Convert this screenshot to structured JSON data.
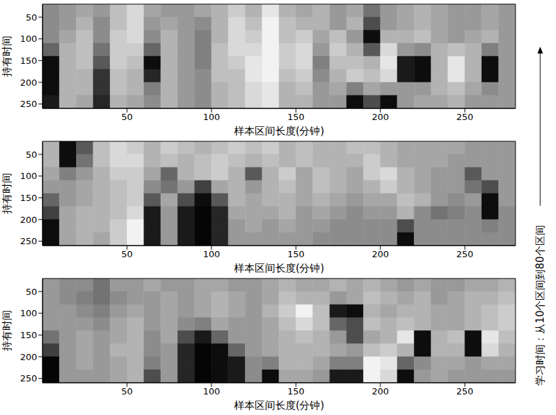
{
  "annotation": "学习时间：从10个区间到80个区间",
  "chart_data": [
    {
      "type": "heatmap",
      "x_label": "样本区间长度(分钟)",
      "y_label": "持有时间",
      "xlim": [
        0,
        280
      ],
      "ylim": [
        20,
        260
      ],
      "xticks": [
        50,
        100,
        150,
        200,
        250
      ],
      "yticks": [
        50,
        100,
        150,
        200,
        250
      ],
      "x_bins": [
        0,
        10,
        20,
        30,
        40,
        50,
        60,
        70,
        80,
        90,
        100,
        110,
        120,
        130,
        140,
        150,
        160,
        170,
        180,
        190,
        200,
        210,
        220,
        230,
        240,
        250,
        260,
        270,
        280
      ],
      "y_bins": [
        20,
        50,
        80,
        110,
        140,
        170,
        200,
        230,
        260
      ],
      "cells": [
        [
          0.55,
          0.6,
          0.65,
          0.6,
          0.75,
          0.85,
          0.65,
          0.6,
          0.6,
          0.65,
          0.7,
          0.8,
          0.7,
          0.9,
          0.7,
          0.65,
          0.7,
          0.6,
          0.65,
          0.45,
          0.6,
          0.65,
          0.7,
          0.65,
          0.6,
          0.6,
          0.65,
          0.6
        ],
        [
          0.55,
          0.6,
          0.7,
          0.55,
          0.75,
          0.85,
          0.6,
          0.65,
          0.6,
          0.55,
          0.7,
          0.85,
          0.75,
          0.95,
          0.75,
          0.7,
          0.7,
          0.6,
          0.7,
          0.3,
          0.6,
          0.65,
          0.7,
          0.65,
          0.6,
          0.6,
          0.65,
          0.6
        ],
        [
          0.55,
          0.65,
          0.75,
          0.55,
          0.8,
          0.85,
          0.55,
          0.7,
          0.6,
          0.5,
          0.7,
          0.85,
          0.8,
          0.95,
          0.75,
          0.8,
          0.65,
          0.75,
          0.6,
          0.05,
          0.7,
          0.7,
          0.75,
          0.65,
          0.6,
          0.65,
          0.7,
          0.6
        ],
        [
          0.4,
          0.7,
          0.75,
          0.45,
          0.8,
          0.8,
          0.4,
          0.7,
          0.6,
          0.5,
          0.75,
          0.85,
          0.85,
          0.95,
          0.8,
          0.85,
          0.6,
          0.8,
          0.7,
          0.35,
          0.85,
          0.6,
          0.55,
          0.7,
          0.75,
          0.7,
          0.5,
          0.6
        ],
        [
          0.05,
          0.7,
          0.75,
          0.35,
          0.8,
          0.75,
          0.05,
          0.7,
          0.6,
          0.5,
          0.75,
          0.8,
          0.9,
          0.95,
          0.8,
          0.85,
          0.5,
          0.75,
          0.75,
          0.7,
          0.9,
          0.1,
          0.05,
          0.7,
          0.9,
          0.7,
          0.05,
          0.6
        ],
        [
          0.05,
          0.7,
          0.7,
          0.2,
          0.75,
          0.7,
          0.15,
          0.7,
          0.6,
          0.55,
          0.75,
          0.75,
          0.9,
          0.95,
          0.75,
          0.8,
          0.55,
          0.7,
          0.8,
          0.75,
          0.85,
          0.1,
          0.05,
          0.7,
          0.9,
          0.7,
          0.05,
          0.6
        ],
        [
          0.05,
          0.7,
          0.7,
          0.2,
          0.75,
          0.7,
          0.5,
          0.7,
          0.6,
          0.55,
          0.7,
          0.75,
          0.85,
          0.9,
          0.7,
          0.75,
          0.6,
          0.65,
          0.5,
          0.65,
          0.6,
          0.6,
          0.6,
          0.7,
          0.75,
          0.65,
          0.55,
          0.6
        ],
        [
          0.1,
          0.7,
          0.65,
          0.15,
          0.7,
          0.65,
          0.55,
          0.7,
          0.6,
          0.55,
          0.7,
          0.75,
          0.85,
          0.9,
          0.7,
          0.7,
          0.6,
          0.6,
          0.05,
          0.3,
          0.05,
          0.6,
          0.65,
          0.65,
          0.7,
          0.6,
          0.6,
          0.6
        ]
      ]
    },
    {
      "type": "heatmap",
      "x_label": "样本区间长度(分钟)",
      "y_label": "持有时间",
      "xlim": [
        0,
        280
      ],
      "ylim": [
        20,
        260
      ],
      "xticks": [
        50,
        100,
        150,
        200,
        250
      ],
      "yticks": [
        50,
        100,
        150,
        200,
        250
      ],
      "x_bins": [
        0,
        10,
        20,
        30,
        40,
        50,
        60,
        70,
        80,
        90,
        100,
        110,
        120,
        130,
        140,
        150,
        160,
        170,
        180,
        190,
        200,
        210,
        220,
        230,
        240,
        250,
        260,
        270,
        280
      ],
      "y_bins": [
        20,
        50,
        80,
        110,
        140,
        170,
        200,
        230,
        260
      ],
      "cells": [
        [
          0.7,
          0.05,
          0.35,
          0.75,
          0.85,
          0.8,
          0.7,
          0.8,
          0.75,
          0.7,
          0.75,
          0.8,
          0.75,
          0.8,
          0.7,
          0.75,
          0.7,
          0.7,
          0.75,
          0.75,
          0.7,
          0.65,
          0.65,
          0.65,
          0.65,
          0.6,
          0.6,
          0.6
        ],
        [
          0.7,
          0.05,
          0.45,
          0.75,
          0.85,
          0.85,
          0.7,
          0.75,
          0.7,
          0.75,
          0.8,
          0.75,
          0.7,
          0.75,
          0.7,
          0.75,
          0.7,
          0.7,
          0.7,
          0.8,
          0.7,
          0.65,
          0.65,
          0.65,
          0.6,
          0.6,
          0.6,
          0.6
        ],
        [
          0.65,
          0.5,
          0.6,
          0.7,
          0.8,
          0.8,
          0.65,
          0.4,
          0.7,
          0.75,
          0.8,
          0.7,
          0.35,
          0.7,
          0.8,
          0.65,
          0.75,
          0.7,
          0.65,
          0.8,
          0.85,
          0.7,
          0.65,
          0.6,
          0.6,
          0.35,
          0.6,
          0.6
        ],
        [
          0.6,
          0.6,
          0.65,
          0.7,
          0.75,
          0.8,
          0.55,
          0.45,
          0.6,
          0.25,
          0.65,
          0.7,
          0.6,
          0.7,
          0.75,
          0.65,
          0.75,
          0.7,
          0.65,
          0.7,
          0.8,
          0.7,
          0.65,
          0.6,
          0.6,
          0.45,
          0.3,
          0.6
        ],
        [
          0.4,
          0.6,
          0.65,
          0.7,
          0.75,
          0.8,
          0.35,
          0.65,
          0.3,
          0.05,
          0.35,
          0.7,
          0.65,
          0.7,
          0.7,
          0.65,
          0.7,
          0.65,
          0.6,
          0.65,
          0.65,
          0.75,
          0.7,
          0.6,
          0.55,
          0.6,
          0.05,
          0.6
        ],
        [
          0.25,
          0.65,
          0.7,
          0.7,
          0.75,
          0.85,
          0.1,
          0.6,
          0.1,
          0.02,
          0.15,
          0.65,
          0.65,
          0.65,
          0.7,
          0.6,
          0.65,
          0.6,
          0.55,
          0.6,
          0.6,
          0.7,
          0.55,
          0.45,
          0.5,
          0.55,
          0.05,
          0.55
        ],
        [
          0.05,
          0.65,
          0.7,
          0.7,
          0.8,
          0.95,
          0.1,
          0.6,
          0.1,
          0.02,
          0.15,
          0.6,
          0.65,
          0.6,
          0.65,
          0.6,
          0.6,
          0.55,
          0.55,
          0.55,
          0.55,
          0.3,
          0.55,
          0.55,
          0.55,
          0.55,
          0.5,
          0.55
        ],
        [
          0.05,
          0.65,
          0.7,
          0.65,
          0.8,
          0.95,
          0.1,
          0.6,
          0.1,
          0.02,
          0.15,
          0.6,
          0.6,
          0.6,
          0.6,
          0.6,
          0.55,
          0.55,
          0.55,
          0.55,
          0.55,
          0.05,
          0.55,
          0.55,
          0.55,
          0.55,
          0.55,
          0.55
        ]
      ]
    },
    {
      "type": "heatmap",
      "x_label": "样本区间长度(分钟)",
      "y_label": "持有时间",
      "xlim": [
        0,
        280
      ],
      "ylim": [
        20,
        260
      ],
      "xticks": [
        50,
        100,
        150,
        200,
        250
      ],
      "yticks": [
        50,
        100,
        150,
        200,
        250
      ],
      "x_bins": [
        0,
        10,
        20,
        30,
        40,
        50,
        60,
        70,
        80,
        90,
        100,
        110,
        120,
        130,
        140,
        150,
        160,
        170,
        180,
        190,
        200,
        210,
        220,
        230,
        240,
        250,
        260,
        270,
        280
      ],
      "y_bins": [
        20,
        50,
        80,
        110,
        140,
        170,
        200,
        230,
        260
      ],
      "cells": [
        [
          0.6,
          0.55,
          0.55,
          0.45,
          0.6,
          0.6,
          0.65,
          0.6,
          0.6,
          0.65,
          0.65,
          0.6,
          0.6,
          0.65,
          0.7,
          0.65,
          0.65,
          0.7,
          0.65,
          0.7,
          0.65,
          0.6,
          0.65,
          0.6,
          0.6,
          0.65,
          0.65,
          0.7
        ],
        [
          0.6,
          0.55,
          0.5,
          0.45,
          0.55,
          0.6,
          0.6,
          0.65,
          0.6,
          0.65,
          0.7,
          0.65,
          0.6,
          0.65,
          0.75,
          0.7,
          0.7,
          0.6,
          0.65,
          0.75,
          0.7,
          0.65,
          0.7,
          0.6,
          0.65,
          0.7,
          0.7,
          0.75
        ],
        [
          0.6,
          0.6,
          0.55,
          0.5,
          0.6,
          0.65,
          0.6,
          0.65,
          0.6,
          0.65,
          0.7,
          0.65,
          0.6,
          0.7,
          0.8,
          0.95,
          0.75,
          0.1,
          0.05,
          0.7,
          0.65,
          0.7,
          0.7,
          0.65,
          0.65,
          0.7,
          0.75,
          0.8
        ],
        [
          0.6,
          0.6,
          0.6,
          0.55,
          0.65,
          0.7,
          0.6,
          0.65,
          0.55,
          0.5,
          0.65,
          0.6,
          0.6,
          0.65,
          0.75,
          0.85,
          0.75,
          0.4,
          0.3,
          0.75,
          0.7,
          0.75,
          0.7,
          0.65,
          0.65,
          0.7,
          0.75,
          0.8
        ],
        [
          0.45,
          0.6,
          0.65,
          0.6,
          0.65,
          0.7,
          0.55,
          0.65,
          0.3,
          0.1,
          0.4,
          0.6,
          0.6,
          0.65,
          0.7,
          0.75,
          0.7,
          0.6,
          0.3,
          0.65,
          0.7,
          0.9,
          0.05,
          0.7,
          0.75,
          0.05,
          0.9,
          0.75
        ],
        [
          0.25,
          0.6,
          0.65,
          0.6,
          0.7,
          0.7,
          0.55,
          0.6,
          0.15,
          0.02,
          0.05,
          0.4,
          0.6,
          0.65,
          0.7,
          0.7,
          0.7,
          0.65,
          0.6,
          0.75,
          0.8,
          0.7,
          0.05,
          0.7,
          0.7,
          0.05,
          0.85,
          0.7
        ],
        [
          0.02,
          0.6,
          0.65,
          0.6,
          0.65,
          0.7,
          0.5,
          0.6,
          0.15,
          0.02,
          0.05,
          0.1,
          0.55,
          0.5,
          0.7,
          0.7,
          0.65,
          0.5,
          0.5,
          0.95,
          0.9,
          0.4,
          0.55,
          0.65,
          0.65,
          0.6,
          0.65,
          0.65
        ],
        [
          0.02,
          0.6,
          0.6,
          0.6,
          0.65,
          0.7,
          0.3,
          0.6,
          0.15,
          0.02,
          0.05,
          0.1,
          0.55,
          0.05,
          0.65,
          0.65,
          0.6,
          0.1,
          0.1,
          0.95,
          0.85,
          0.05,
          0.6,
          0.65,
          0.6,
          0.6,
          0.6,
          0.6
        ]
      ]
    }
  ]
}
